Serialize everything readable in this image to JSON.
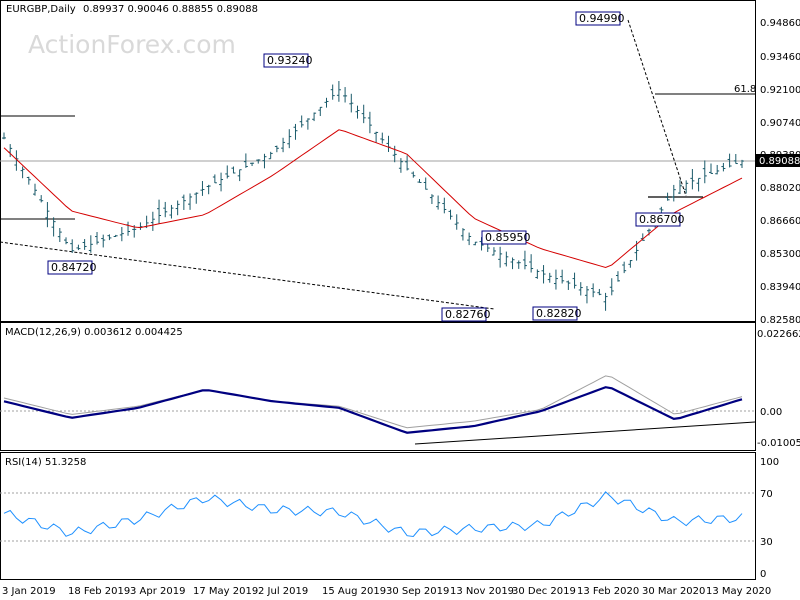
{
  "header": {
    "symbol": "EURGBP,Daily",
    "ohlc": "0.89937 0.90046 0.88855 0.89088",
    "watermark": "ActionForex.com"
  },
  "colors": {
    "ma_line": "#d40000",
    "macd_line": "#000080",
    "signal_line": "#a0a0a0",
    "price_bars": "#1a5a6a",
    "last_price_box": "#000000"
  },
  "chart_data": [
    {
      "type": "line",
      "panel": "price",
      "title": "EURGBP,Daily",
      "ylim": [
        0.8258,
        0.9556
      ],
      "y_ticks": [
        "0.94860",
        "0.93460",
        "0.92100",
        "0.90740",
        "0.89380",
        "0.88020",
        "0.86660",
        "0.85300",
        "0.83940",
        "0.82580"
      ],
      "x_ticks": [
        "3 Jan 2019",
        "18 Feb 2019",
        "3 Apr 2019",
        "17 May 2019",
        "2 Jul 2019",
        "15 Aug 2019",
        "30 Sep 2019",
        "13 Nov 2019",
        "30 Dec 2019",
        "13 Feb 2020",
        "30 Mar 2020",
        "13 May 2020"
      ],
      "series": [
        {
          "x": [
            "3 Jan 2019",
            "18 Feb 2019",
            "3 Apr 2019",
            "17 May 2019",
            "2 Jul 2019",
            "15 Aug 2019",
            "30 Sep 2019",
            "13 Nov 2019",
            "30 Dec 2019",
            "13 Feb 2020",
            "30 Mar 2020",
            "13 May 2020"
          ],
          "values": [
            0.901,
            0.8545,
            0.864,
            0.8805,
            0.895,
            0.921,
            0.8885,
            0.8585,
            0.8455,
            0.8355,
            0.8805,
            0.8915
          ]
        },
        {
          "x": [
            "3 Jan 2019",
            "18 Feb 2019",
            "3 Apr 2019",
            "17 May 2019",
            "2 Jul 2019",
            "15 Aug 2019",
            "30 Sep 2019",
            "13 Nov 2019",
            "30 Dec 2019",
            "13 Feb 2020",
            "30 Mar 2020",
            "13 May 2020"
          ],
          "values": [
            0.897,
            0.871,
            0.864,
            0.8695,
            0.8855,
            0.9045,
            0.8945,
            0.868,
            0.8555,
            0.8475,
            0.8705,
            0.8845
          ]
        }
      ],
      "annotations": [
        "0.94990",
        "0.93240",
        "0.84720",
        "0.85950",
        "0.86700",
        "0.82760",
        "0.82820",
        "61.8"
      ],
      "last_price": "0.89088"
    },
    {
      "type": "line",
      "panel": "macd",
      "title": "MACD(12,26,9) 0.003612 0.004425",
      "ylim": [
        -0.0114,
        0.0245
      ],
      "y_ticks": [
        "0.022662",
        "0.00",
        "-0.010052"
      ],
      "series": [
        {
          "x": [
            "3 Jan 2019",
            "18 Feb 2019",
            "3 Apr 2019",
            "17 May 2019",
            "2 Jul 2019",
            "15 Aug 2019",
            "30 Sep 2019",
            "13 Nov 2019",
            "30 Dec 2019",
            "13 Feb 2020",
            "30 Mar 2020",
            "13 May 2020"
          ],
          "values": [
            0.003,
            -0.002,
            0.001,
            0.0065,
            0.003,
            0.001,
            -0.0065,
            -0.0045,
            0.0,
            0.0075,
            -0.0025,
            0.0036
          ]
        },
        {
          "x": [
            "3 Jan 2019",
            "18 Feb 2019",
            "3 Apr 2019",
            "17 May 2019",
            "2 Jul 2019",
            "15 Aug 2019",
            "30 Sep 2019",
            "13 Nov 2019",
            "30 Dec 2019",
            "13 Feb 2020",
            "30 Mar 2020",
            "13 May 2020"
          ],
          "values": [
            0.004,
            -0.001,
            0.0015,
            0.0065,
            0.003,
            0.0015,
            -0.005,
            -0.003,
            0.0005,
            0.011,
            -0.001,
            0.0044
          ]
        }
      ]
    },
    {
      "type": "line",
      "panel": "rsi",
      "title": "RSI(14) 51.3258",
      "ylim": [
        0,
        102
      ],
      "y_ticks": [
        "100",
        "70",
        "30",
        "0"
      ],
      "series": [
        {
          "x": [
            "3 Jan 2019",
            "18 Feb 2019",
            "3 Apr 2019",
            "17 May 2019",
            "2 Jul 2019",
            "15 Aug 2019",
            "30 Sep 2019",
            "13 Nov 2019",
            "30 Dec 2019",
            "13 Feb 2020",
            "30 Mar 2020",
            "13 May 2020"
          ],
          "values": [
            55,
            38,
            50,
            68,
            58,
            56,
            38,
            42,
            45,
            70,
            48,
            51
          ]
        }
      ]
    }
  ]
}
